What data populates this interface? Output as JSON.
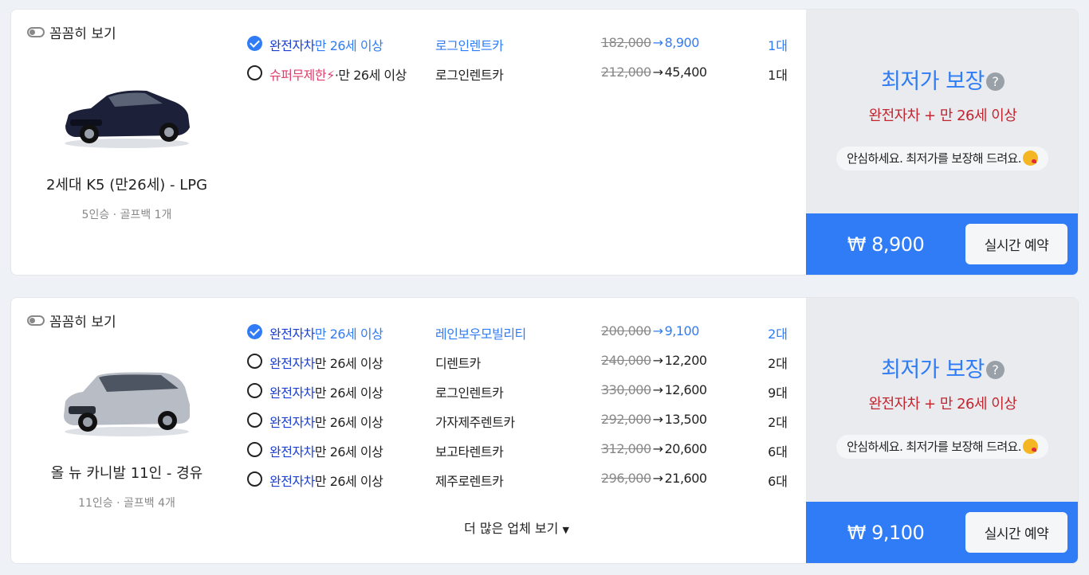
{
  "toggle_label": "꼼꼼히 보기",
  "guarantee": {
    "title": "최저가 보장",
    "help_glyph": "?",
    "subtitle": "완전자차 + 만 26세 이상",
    "pill_text": "안심하세요. 최저가를 보장해 드려요."
  },
  "book_label": "실시간 예약",
  "more_label": "더 많은 업체 보기",
  "cars": [
    {
      "name": "2세대 K5 (만26세) - LPG",
      "spec": "5인승 · 골프백 1개",
      "car_color": "#1c2038",
      "pay_amount": "₩ 8,900",
      "offers": [
        {
          "selected": true,
          "ins_type": "완전자차",
          "bolt": "",
          "ins_age": "만 26세 이상",
          "company": "로그인렌트카",
          "orig_price": "182,000",
          "arrow": "→",
          "price": "8,900",
          "count": "1대"
        },
        {
          "selected": false,
          "ins_type": "슈퍼무제한",
          "bolt": "⚡",
          "ins_age": "·만 26세 이상",
          "company": "로그인렌트카",
          "orig_price": "212,000",
          "arrow": "→",
          "price": "45,400",
          "count": "1대"
        }
      ]
    },
    {
      "name": "올 뉴 카니발 11인 - 경유",
      "spec": "11인승 · 골프백 4개",
      "car_color": "#b8bcc4",
      "pay_amount": "₩ 9,100",
      "offers": [
        {
          "selected": true,
          "ins_type": "완전자차",
          "bolt": "",
          "ins_age": "만 26세 이상",
          "company": "레인보우모빌리티",
          "orig_price": "200,000",
          "arrow": "→",
          "price": "9,100",
          "count": "2대"
        },
        {
          "selected": false,
          "ins_type": "완전자차",
          "bolt": "",
          "ins_age": "만 26세 이상",
          "company": "디렌트카",
          "orig_price": "240,000",
          "arrow": "→",
          "price": "12,200",
          "count": "2대"
        },
        {
          "selected": false,
          "ins_type": "완전자차",
          "bolt": "",
          "ins_age": "만 26세 이상",
          "company": "로그인렌트카",
          "orig_price": "330,000",
          "arrow": "→",
          "price": "12,600",
          "count": "9대"
        },
        {
          "selected": false,
          "ins_type": "완전자차",
          "bolt": "",
          "ins_age": "만 26세 이상",
          "company": "가자제주렌트카",
          "orig_price": "292,000",
          "arrow": "→",
          "price": "13,500",
          "count": "2대"
        },
        {
          "selected": false,
          "ins_type": "완전자차",
          "bolt": "",
          "ins_age": "만 26세 이상",
          "company": "보고타렌트카",
          "orig_price": "312,000",
          "arrow": "→",
          "price": "20,600",
          "count": "6대"
        },
        {
          "selected": false,
          "ins_type": "완전자차",
          "bolt": "",
          "ins_age": "만 26세 이상",
          "company": "제주로렌트카",
          "orig_price": "296,000",
          "arrow": "→",
          "price": "21,600",
          "count": "6대"
        }
      ]
    }
  ]
}
